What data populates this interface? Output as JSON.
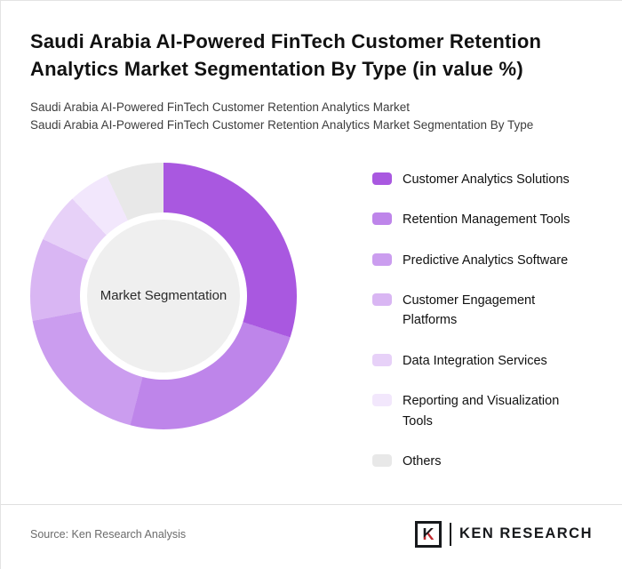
{
  "header": {
    "title": "Saudi Arabia AI-Powered FinTech Customer Retention Analytics Market Segmentation By Type (in value %)",
    "subtitle1": "Saudi Arabia AI-Powered FinTech Customer Retention Analytics Market",
    "subtitle2": "Saudi Arabia AI-Powered FinTech Customer Retention Analytics Market Segmentation By Type"
  },
  "chart_data": {
    "type": "pie",
    "variant": "donut",
    "title": "Saudi Arabia AI-Powered FinTech Customer Retention Analytics Market Segmentation By Type (in value %)",
    "unit": "value %",
    "center_label": "Market Segmentation",
    "legend_position": "right",
    "start_angle_deg": 0,
    "direction": "clockwise",
    "slices": [
      {
        "label": "Customer Analytics Solutions",
        "value": 30,
        "color": "#A958E0"
      },
      {
        "label": "Retention Management Tools",
        "value": 24,
        "color": "#BE85EA"
      },
      {
        "label": "Predictive Analytics Software",
        "value": 18,
        "color": "#CB9DEF"
      },
      {
        "label": "Customer Engagement Platforms",
        "value": 10,
        "color": "#D9B6F3"
      },
      {
        "label": "Data Integration Services",
        "value": 6,
        "color": "#E7D1F8"
      },
      {
        "label": "Reporting and Visualization Tools",
        "value": 5,
        "color": "#F2E7FC"
      },
      {
        "label": "Others",
        "value": 7,
        "color": "#E8E8E8"
      }
    ]
  },
  "footer": {
    "source": "Source: Ken Research Analysis",
    "logo_letter": "K",
    "logo_text": "KEN RESEARCH",
    "logo_accent_color": "#C0272D"
  }
}
